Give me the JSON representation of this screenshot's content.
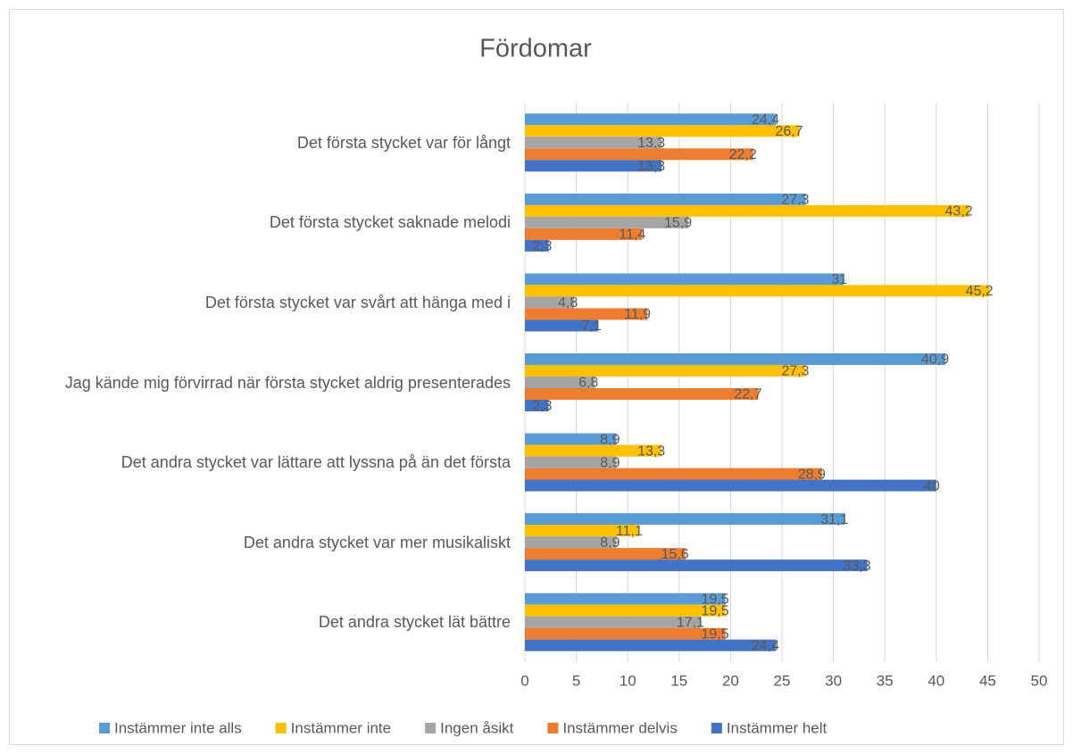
{
  "chart_data": {
    "type": "bar",
    "orientation": "horizontal",
    "title": "Fördomar",
    "categories": [
      "Det första stycket var för långt",
      "Det första stycket saknade melodi",
      "Det första stycket var svårt att hänga med i",
      "Jag kände mig förvirrad när första stycket aldrig presenterades",
      "Det andra stycket var lättare att lyssna på än det första",
      "Det andra stycket var mer musikaliskt",
      "Det andra stycket lät bättre"
    ],
    "series": [
      {
        "name": "Instämmer inte alls",
        "color": "#5b9bd5",
        "values": [
          24.4,
          27.3,
          31,
          40.9,
          8.9,
          31.1,
          19.5
        ],
        "value_labels": [
          "24,4",
          "27,3",
          "31",
          "40,9",
          "8,9",
          "31,1",
          "19,5"
        ]
      },
      {
        "name": "Instämmer inte",
        "color": "#ffc000",
        "values": [
          26.7,
          43.2,
          45.2,
          27.3,
          13.3,
          11.1,
          19.5
        ],
        "value_labels": [
          "26,7",
          "43,2",
          "45,2",
          "27,3",
          "13,3",
          "11,1",
          "19,5"
        ]
      },
      {
        "name": "Ingen åsikt",
        "color": "#a5a5a5",
        "values": [
          13.3,
          15.9,
          4.8,
          6.8,
          8.9,
          8.9,
          17.1
        ],
        "value_labels": [
          "13,3",
          "15,9",
          "4,8",
          "6,8",
          "8,9",
          "8,9",
          "17,1"
        ]
      },
      {
        "name": "Instämmer delvis",
        "color": "#ed7d31",
        "values": [
          22.2,
          11.4,
          11.9,
          22.7,
          28.9,
          15.6,
          19.5
        ],
        "value_labels": [
          "22,2",
          "11,4",
          "11,9",
          "22,7",
          "28,9",
          "15,6",
          "19,5"
        ]
      },
      {
        "name": "Instämmer helt",
        "color": "#4472c4",
        "values": [
          13.3,
          2.3,
          7.1,
          2.3,
          40,
          33.3,
          24.4
        ],
        "value_labels": [
          "13,3",
          "2,3",
          "7,1",
          "2,3",
          "40",
          "33,3",
          "24,4"
        ]
      }
    ],
    "xlim": [
      0,
      50
    ],
    "xticks": [
      0,
      5,
      10,
      15,
      20,
      25,
      30,
      35,
      40,
      45,
      50
    ],
    "grid": true,
    "legend": "bottom"
  }
}
